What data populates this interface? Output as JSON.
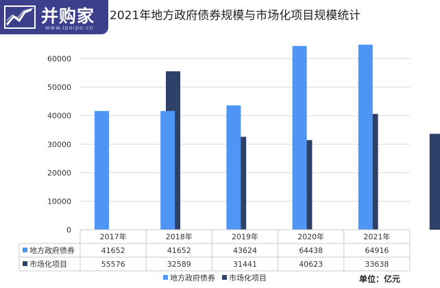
{
  "watermark": {
    "text": "并购家",
    "url": "www.ipoipo.cn"
  },
  "chart_data": {
    "type": "bar",
    "title": "2021年地方政府债券规模与市场化项目规模统计",
    "categories": [
      "2017年",
      "2018年",
      "2019年",
      "2020年",
      "2021年"
    ],
    "series": [
      {
        "name": "地方政府债券",
        "color": "#4e95f5",
        "values": [
          41652,
          41652,
          43624,
          64438,
          64916
        ]
      },
      {
        "name": "市场化项目",
        "color": "#2e4169",
        "values": [
          55576,
          32589,
          31441,
          40623,
          33638
        ]
      }
    ],
    "ylim": [
      0,
      70000
    ],
    "yticks": [
      0,
      10000,
      20000,
      30000,
      40000,
      50000,
      60000
    ],
    "grid": true,
    "legend": "bottom",
    "data_table": true,
    "unit_note": "单位：亿元"
  }
}
